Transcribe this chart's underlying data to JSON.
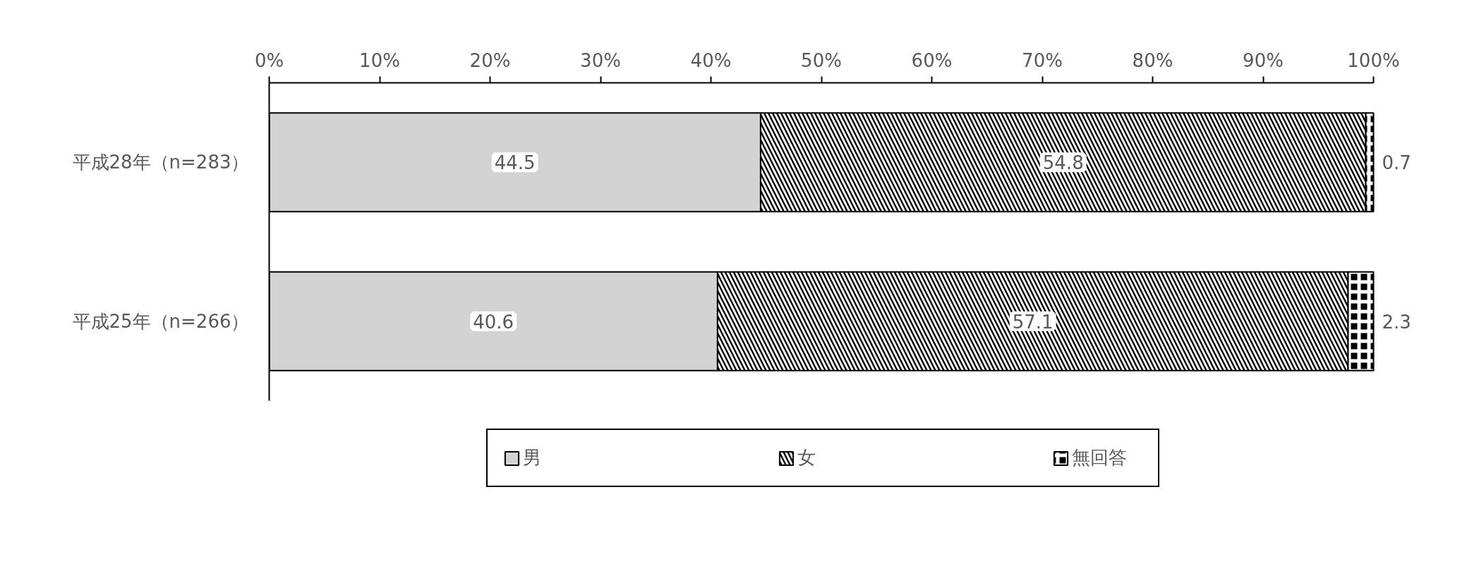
{
  "chart_data": {
    "type": "bar",
    "orientation": "horizontal",
    "stacked": true,
    "categories": [
      "平成28年（n=283）",
      "平成25年（n=266）"
    ],
    "series": [
      {
        "name": "男",
        "color": "#d3d3d3",
        "values": [
          44.5,
          40.6
        ]
      },
      {
        "name": "女",
        "color": "#000000",
        "values": [
          54.8,
          57.1
        ]
      },
      {
        "name": "無回答",
        "color": "#000000",
        "values": [
          0.7,
          2.3
        ]
      }
    ],
    "xlim": [
      0,
      100
    ],
    "xticks": [
      {
        "value": 0,
        "label": "0%"
      },
      {
        "value": 10,
        "label": "10%"
      },
      {
        "value": 20,
        "label": "20%"
      },
      {
        "value": 30,
        "label": "30%"
      },
      {
        "value": 40,
        "label": "40%"
      },
      {
        "value": 50,
        "label": "50%"
      },
      {
        "value": 60,
        "label": "60%"
      },
      {
        "value": 70,
        "label": "70%"
      },
      {
        "value": 80,
        "label": "80%"
      },
      {
        "value": 90,
        "label": "90%"
      },
      {
        "value": 100,
        "label": "100%"
      }
    ],
    "data_labels": true,
    "legend": "bottom",
    "grid": false
  }
}
